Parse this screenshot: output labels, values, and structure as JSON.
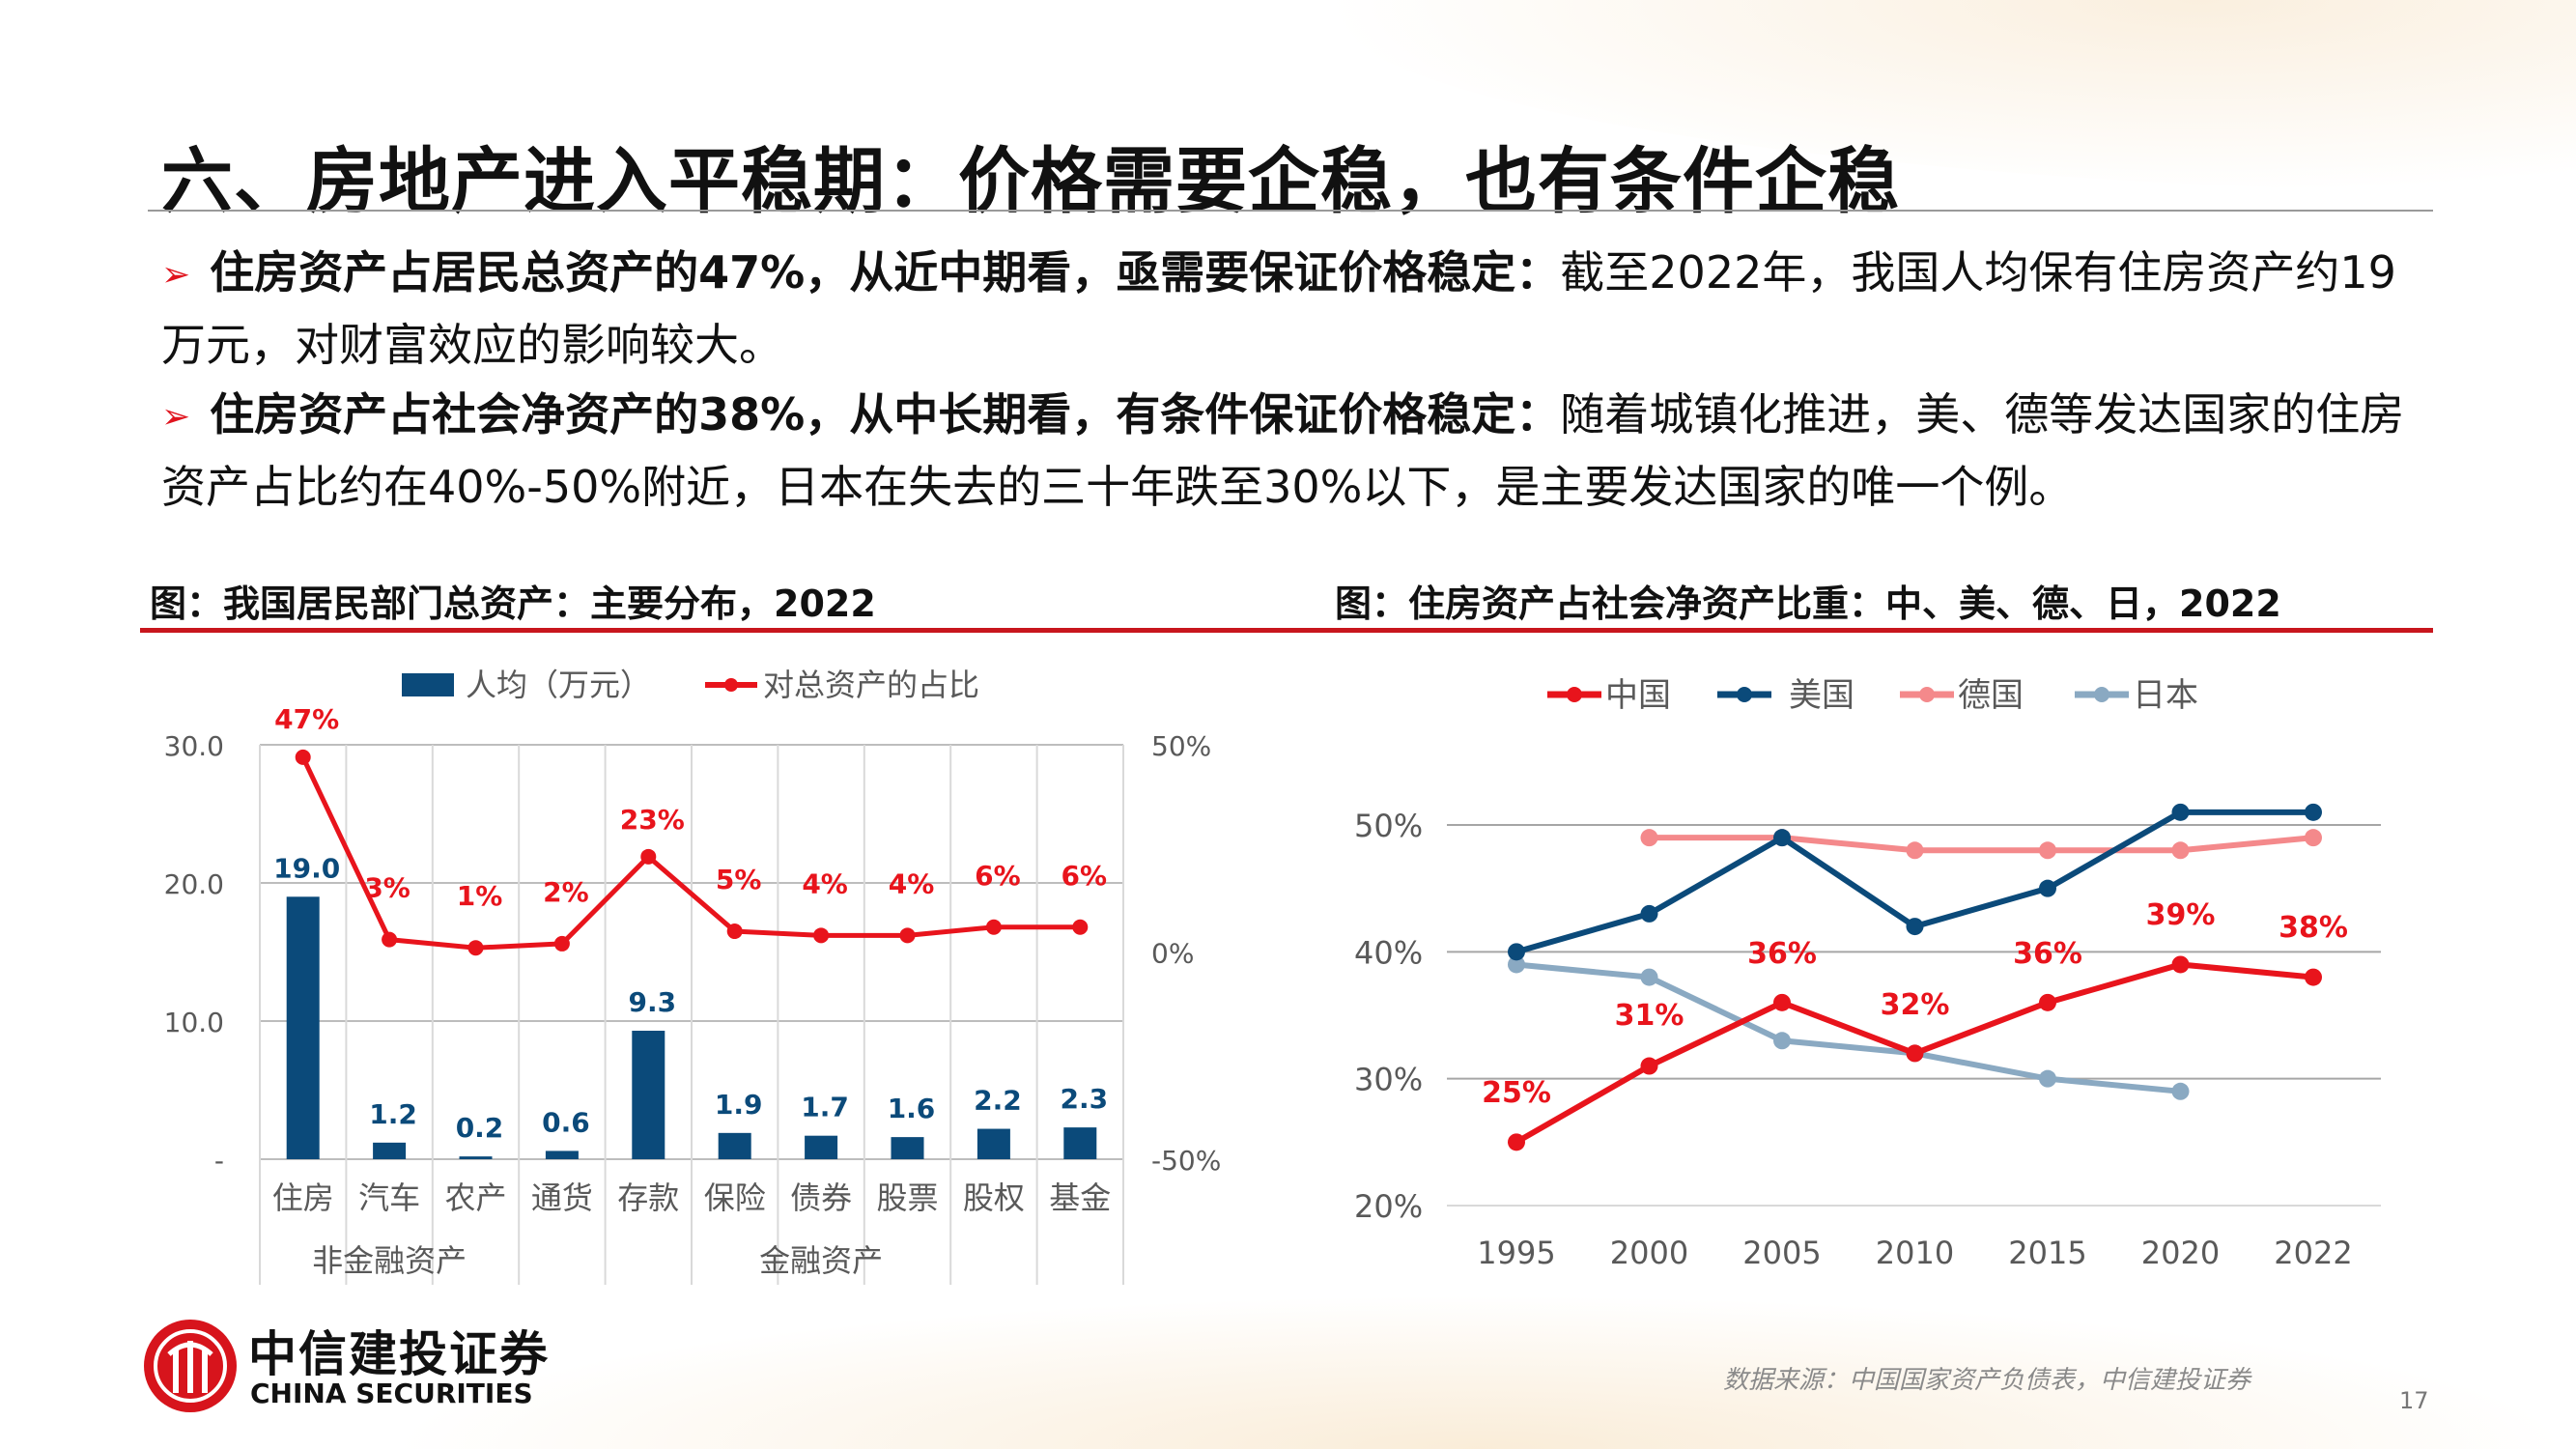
{
  "title": "六、房地产进入平稳期：价格需要企稳，也有条件企稳",
  "bullets": [
    {
      "bold": "住房资产占居民总资产的47%，从近中期看，亟需要保证价格稳定：",
      "text": "截至2022年，我国人均保有住房资产约19万元，对财富效应的影响较大。"
    },
    {
      "bold": "住房资产占社会净资产的38%，从中长期看，有条件保证价格稳定：",
      "text": "随着城镇化推进，美、德等发达国家的住房资产占比约在40%-50%附近，日本在失去的三十年跌至30%以下，是主要发达国家的唯一个例。"
    }
  ],
  "chart_titles": {
    "left": "图：我国居民部门总资产：主要分布，2022",
    "right": "图：住房资产占社会净资产比重：中、美、德、日，2022"
  },
  "colors": {
    "accent_red": "#c8161d",
    "navy": "#0b4a7a",
    "line_red": "#e8141c",
    "pink": "#f4898b",
    "grey_blue": "#8aa9c2"
  },
  "chart_data": [
    {
      "type": "bar+line",
      "categories": [
        "住房",
        "汽车",
        "农产",
        "通货",
        "存款",
        "保险",
        "债券",
        "股票",
        "股权",
        "基金"
      ],
      "groups": [
        {
          "label": "非金融资产",
          "span": 3
        },
        {
          "label": "金融资产",
          "span": 7
        }
      ],
      "series": [
        {
          "name": "人均（万元）",
          "kind": "bar",
          "axis": "left",
          "values": [
            19.0,
            1.2,
            0.2,
            0.6,
            9.3,
            1.9,
            1.7,
            1.6,
            2.2,
            2.3
          ],
          "labels": [
            "19.0",
            "1.2",
            "0.2",
            "0.6",
            "9.3",
            "1.9",
            "1.7",
            "1.6",
            "2.2",
            "2.3"
          ]
        },
        {
          "name": "对总资产的占比",
          "kind": "line",
          "axis": "right",
          "values": [
            47,
            3,
            1,
            2,
            23,
            5,
            4,
            4,
            6,
            6
          ],
          "labels": [
            "47%",
            "3%",
            "1%",
            "2%",
            "23%",
            "5%",
            "4%",
            "4%",
            "6%",
            "6%"
          ]
        }
      ],
      "y_left": {
        "ylim": [
          0,
          30
        ],
        "ticks": [
          "-",
          "10.0",
          "20.0",
          "30.0"
        ]
      },
      "y_right": {
        "ylim": [
          -50,
          50
        ],
        "ticks": [
          "-50%",
          "0%",
          "50%"
        ]
      },
      "grid": true,
      "legend": "top"
    },
    {
      "type": "line",
      "x": [
        "1995",
        "2000",
        "2005",
        "2010",
        "2015",
        "2020",
        "2022"
      ],
      "series": [
        {
          "name": "中国",
          "values": [
            25,
            31,
            36,
            32,
            36,
            39,
            38
          ],
          "labels": [
            "25%",
            "31%",
            "36%",
            "32%",
            "36%",
            "39%",
            "38%"
          ]
        },
        {
          "name": "美国",
          "values": [
            40,
            43,
            49,
            42,
            45,
            51,
            51
          ]
        },
        {
          "name": "德国",
          "values": [
            null,
            49,
            49,
            48,
            48,
            48,
            49
          ]
        },
        {
          "name": "日本",
          "values": [
            39,
            38,
            33,
            32,
            30,
            29,
            null
          ]
        }
      ],
      "ylim": [
        20,
        50
      ],
      "yticks": [
        "20%",
        "30%",
        "40%",
        "50%"
      ],
      "grid": true,
      "legend": "top"
    }
  ],
  "footer": {
    "logo_cn": "中信建投证券",
    "logo_en": "CHINA SECURITIES",
    "source": "数据来源：中国国家资产负债表，中信建投证券",
    "page": "17"
  }
}
